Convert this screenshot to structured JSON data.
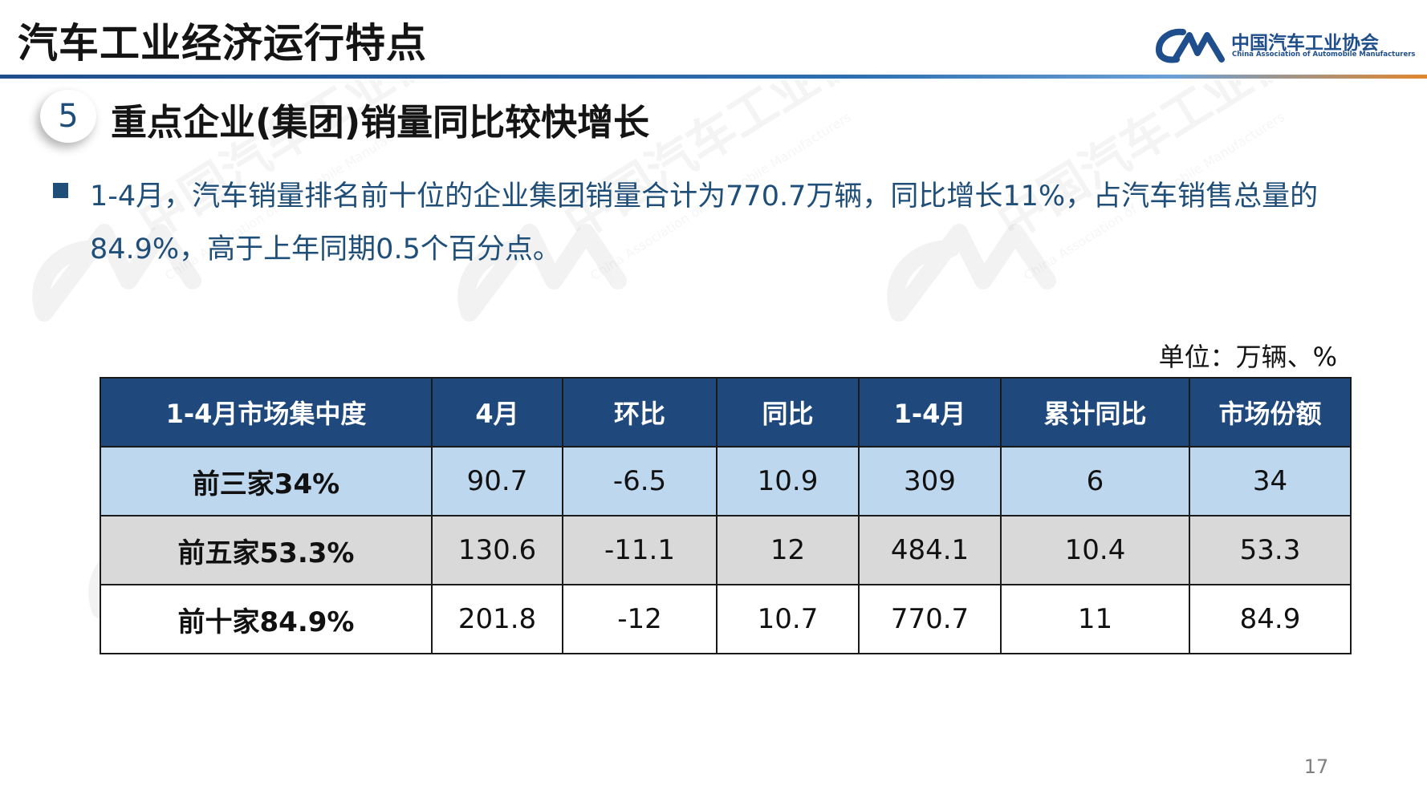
{
  "header": {
    "title": "汽车工业经济运行特点",
    "logo": {
      "cn_name": "中国汽车工业协会",
      "en_name": "China Association of Automobile Manufacturers",
      "brand_color": "#1f4e8c"
    }
  },
  "section": {
    "number": "5",
    "title": "重点企业(集团)销量同比较快增长"
  },
  "bullet": {
    "text": "1-4月，汽车销量排名前十位的企业集团销量合计为770.7万辆，同比增长11%，占汽车销售总量的84.9%，高于上年同期0.5个百分点。"
  },
  "table": {
    "unit": "单位：万辆、%",
    "headers": [
      "1-4月市场集中度",
      "4月",
      "环比",
      "同比",
      "1-4月",
      "累计同比",
      "市场份额"
    ],
    "rows": [
      [
        "前三家34%",
        "90.7",
        "-6.5",
        "10.9",
        "309",
        "6",
        "34"
      ],
      [
        "前五家53.3%",
        "130.6",
        "-11.1",
        "12",
        "484.1",
        "10.4",
        "53.3"
      ],
      [
        "前十家84.9%",
        "201.8",
        "-12",
        "10.7",
        "770.7",
        "11",
        "84.9"
      ]
    ],
    "colors": {
      "header_bg": "#1f497d",
      "row1_bg": "#bdd7ee",
      "row2_bg": "#d9d9d9",
      "row3_bg": "#ffffff"
    }
  },
  "footer": {
    "page_number": "17"
  },
  "watermark": {
    "icon": "caam-logo-icon",
    "cn_text": "中国汽车工业协会",
    "en_text": "China Association of Automobile Manufacturers"
  }
}
